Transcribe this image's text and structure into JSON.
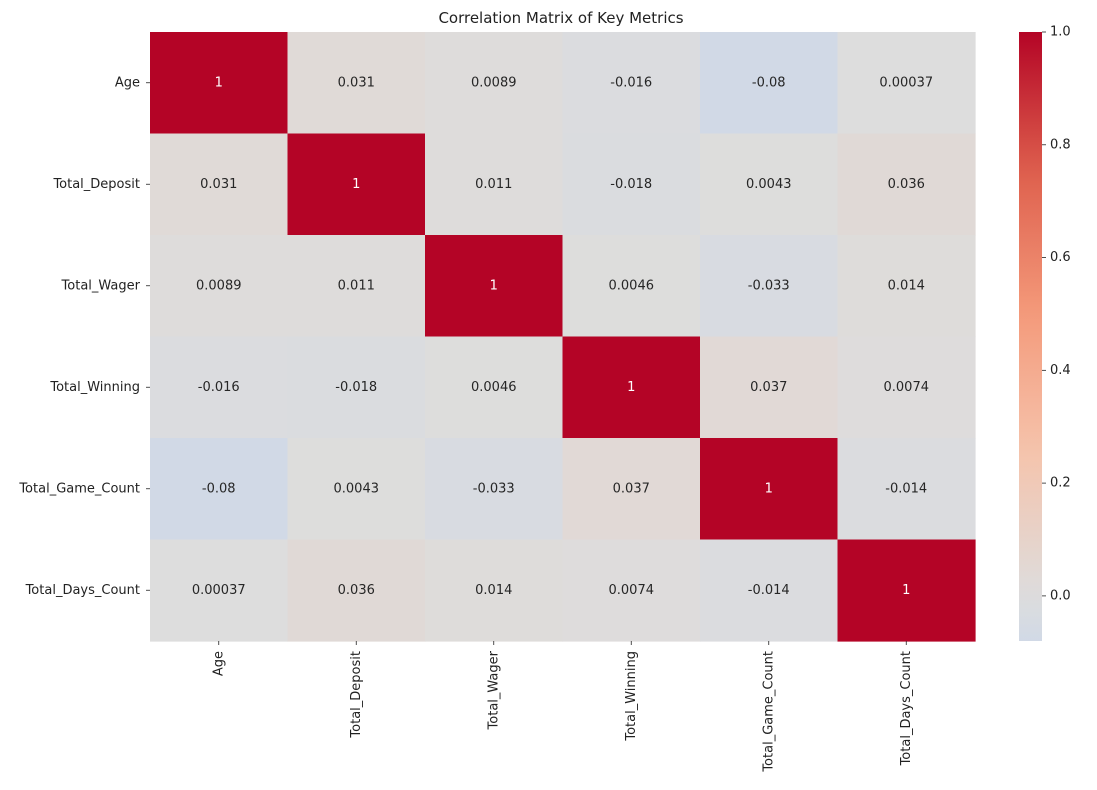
{
  "chart_data": {
    "type": "heatmap",
    "title": "Correlation Matrix of Key Metrics",
    "rows": [
      "Age",
      "Total_Deposit",
      "Total_Wager",
      "Total_Winning",
      "Total_Game_Count",
      "Total_Days_Count"
    ],
    "columns": [
      "Age",
      "Total_Deposit",
      "Total_Wager",
      "Total_Winning",
      "Total_Game_Count",
      "Total_Days_Count"
    ],
    "values": [
      [
        1,
        0.031,
        0.0089,
        -0.016,
        -0.08,
        0.00037
      ],
      [
        0.031,
        1,
        0.011,
        -0.018,
        0.0043,
        0.036
      ],
      [
        0.0089,
        0.011,
        1,
        0.0046,
        -0.033,
        0.014
      ],
      [
        -0.016,
        -0.018,
        0.0046,
        1,
        0.037,
        0.0074
      ],
      [
        -0.08,
        0.0043,
        -0.033,
        0.037,
        1,
        -0.014
      ],
      [
        0.00037,
        0.036,
        0.014,
        0.0074,
        -0.014,
        1
      ]
    ],
    "value_labels": [
      [
        "1",
        "0.031",
        "0.0089",
        "-0.016",
        "-0.08",
        "0.00037"
      ],
      [
        "0.031",
        "1",
        "0.011",
        "-0.018",
        "0.0043",
        "0.036"
      ],
      [
        "0.0089",
        "0.011",
        "1",
        "0.0046",
        "-0.033",
        "0.014"
      ],
      [
        "-0.016",
        "-0.018",
        "0.0046",
        "1",
        "0.037",
        "0.0074"
      ],
      [
        "-0.08",
        "0.0043",
        "-0.033",
        "0.037",
        "1",
        "-0.014"
      ],
      [
        "0.00037",
        "0.036",
        "0.014",
        "0.0074",
        "-0.014",
        "1"
      ]
    ],
    "colormap": "coolwarm",
    "center": 0,
    "vmin": -0.08,
    "vmax": 1.0,
    "colorbar_ticks": [
      "0.0",
      "0.2",
      "0.4",
      "0.6",
      "0.8",
      "1.0"
    ],
    "colorbar_tick_values": [
      0.0,
      0.2,
      0.4,
      0.6,
      0.8,
      1.0
    ],
    "legend": "colorbar-right",
    "grid": false
  }
}
